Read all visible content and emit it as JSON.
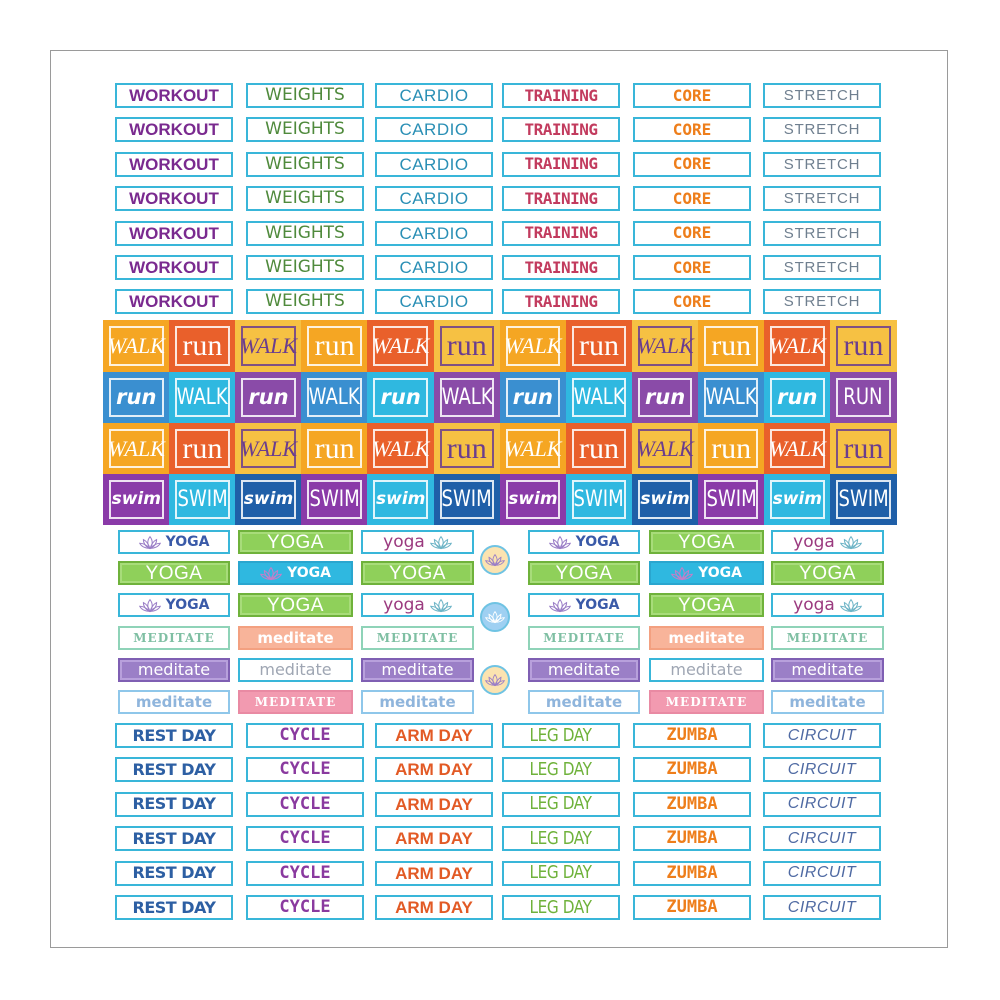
{
  "sticker_sheet": {
    "grid_top": {
      "columns": [
        {
          "text": "WORKOUT",
          "color": "#7a2a8f"
        },
        {
          "text": "WEIGHTS",
          "color": "#4f8a3c"
        },
        {
          "text": "CARDIO",
          "color": "#2a8fb5"
        },
        {
          "text": "TRAINING",
          "color": "#c23b5e"
        },
        {
          "text": "CORE",
          "color": "#ee7e1b"
        },
        {
          "text": "STRETCH",
          "color": "#6f7f8f"
        }
      ],
      "rows": 7
    },
    "tiles": {
      "rows": [
        [
          {
            "text": "WALK",
            "bg": "#f5a623",
            "fg": "#ffffff",
            "line": "#ffffff",
            "italic": true
          },
          {
            "text": "run",
            "bg": "#e9602b",
            "fg": "#ffffff",
            "line": "#ffffff",
            "italic": false
          },
          {
            "text": "WALK",
            "bg": "#f6c143",
            "fg": "#6a3d8f",
            "line": "#6a3d8f",
            "italic": true
          },
          {
            "text": "run",
            "bg": "#f5a623",
            "fg": "#ffffff",
            "line": "#ffffff",
            "italic": false
          },
          {
            "text": "WALK",
            "bg": "#e9602b",
            "fg": "#ffffff",
            "line": "#ffffff",
            "italic": true
          },
          {
            "text": "run",
            "bg": "#f6c143",
            "fg": "#6a3d8f",
            "line": "#6a3d8f",
            "italic": false
          },
          {
            "text": "WALK",
            "bg": "#f5a623",
            "fg": "#ffffff",
            "line": "#ffffff",
            "italic": true
          },
          {
            "text": "run",
            "bg": "#e9602b",
            "fg": "#ffffff",
            "line": "#ffffff",
            "italic": false
          },
          {
            "text": "WALK",
            "bg": "#f6c143",
            "fg": "#6a3d8f",
            "line": "#6a3d8f",
            "italic": true
          },
          {
            "text": "run",
            "bg": "#f5a623",
            "fg": "#ffffff",
            "line": "#ffffff",
            "italic": false
          },
          {
            "text": "WALK",
            "bg": "#e9602b",
            "fg": "#ffffff",
            "line": "#ffffff",
            "italic": true
          },
          {
            "text": "run",
            "bg": "#f6c143",
            "fg": "#6a3d8f",
            "line": "#6a3d8f",
            "italic": false
          }
        ],
        [
          {
            "text": "run",
            "bg": "#3a8fd0",
            "fg": "#ffffff",
            "line": "#ffffff",
            "italic": true
          },
          {
            "text": "WALK",
            "bg": "#2fb8e0",
            "fg": "#ffffff",
            "line": "#ffffff",
            "italic": false
          },
          {
            "text": "run",
            "bg": "#8a4ba8",
            "fg": "#ffffff",
            "line": "#ffffff",
            "italic": true
          },
          {
            "text": "WALK",
            "bg": "#3a8fd0",
            "fg": "#ffffff",
            "line": "#ffffff",
            "italic": false
          },
          {
            "text": "run",
            "bg": "#2fb8e0",
            "fg": "#ffffff",
            "line": "#ffffff",
            "italic": true
          },
          {
            "text": "WALK",
            "bg": "#8a4ba8",
            "fg": "#ffffff",
            "line": "#ffffff",
            "italic": false
          },
          {
            "text": "run",
            "bg": "#3a8fd0",
            "fg": "#ffffff",
            "line": "#ffffff",
            "italic": true
          },
          {
            "text": "WALK",
            "bg": "#2fb8e0",
            "fg": "#ffffff",
            "line": "#ffffff",
            "italic": false
          },
          {
            "text": "run",
            "bg": "#8a4ba8",
            "fg": "#ffffff",
            "line": "#ffffff",
            "italic": true
          },
          {
            "text": "WALK",
            "bg": "#3a8fd0",
            "fg": "#ffffff",
            "line": "#ffffff",
            "italic": false
          },
          {
            "text": "run",
            "bg": "#2fb8e0",
            "fg": "#ffffff",
            "line": "#ffffff",
            "italic": true
          },
          {
            "text": "RUN",
            "bg": "#8a4ba8",
            "fg": "#ffffff",
            "line": "#ffffff",
            "italic": false
          }
        ],
        [
          {
            "text": "WALK",
            "bg": "#f5a623",
            "fg": "#ffffff",
            "line": "#ffffff",
            "italic": true
          },
          {
            "text": "run",
            "bg": "#e9602b",
            "fg": "#ffffff",
            "line": "#ffffff",
            "italic": false
          },
          {
            "text": "WALK",
            "bg": "#f6c143",
            "fg": "#6a3d8f",
            "line": "#6a3d8f",
            "italic": true
          },
          {
            "text": "run",
            "bg": "#f5a623",
            "fg": "#ffffff",
            "line": "#ffffff",
            "italic": false
          },
          {
            "text": "WALK",
            "bg": "#e9602b",
            "fg": "#ffffff",
            "line": "#ffffff",
            "italic": true
          },
          {
            "text": "run",
            "bg": "#f6c143",
            "fg": "#6a3d8f",
            "line": "#6a3d8f",
            "italic": false
          },
          {
            "text": "WALK",
            "bg": "#f5a623",
            "fg": "#ffffff",
            "line": "#ffffff",
            "italic": true
          },
          {
            "text": "run",
            "bg": "#e9602b",
            "fg": "#ffffff",
            "line": "#ffffff",
            "italic": false
          },
          {
            "text": "WALK",
            "bg": "#f6c143",
            "fg": "#6a3d8f",
            "line": "#6a3d8f",
            "italic": true
          },
          {
            "text": "run",
            "bg": "#f5a623",
            "fg": "#ffffff",
            "line": "#ffffff",
            "italic": false
          },
          {
            "text": "WALK",
            "bg": "#e9602b",
            "fg": "#ffffff",
            "line": "#ffffff",
            "italic": true
          },
          {
            "text": "run",
            "bg": "#f6c143",
            "fg": "#6a3d8f",
            "line": "#6a3d8f",
            "italic": false
          }
        ],
        [
          {
            "text": "swim",
            "bg": "#8a3aa8",
            "fg": "#ffffff",
            "line": "#ffffff",
            "italic": true
          },
          {
            "text": "SWIM",
            "bg": "#2fb8e0",
            "fg": "#ffffff",
            "line": "#ffffff",
            "italic": false
          },
          {
            "text": "swim",
            "bg": "#1f5fa8",
            "fg": "#ffffff",
            "line": "#ffffff",
            "italic": true
          },
          {
            "text": "SWIM",
            "bg": "#8a3aa8",
            "fg": "#ffffff",
            "line": "#ffffff",
            "italic": false
          },
          {
            "text": "swim",
            "bg": "#2fb8e0",
            "fg": "#ffffff",
            "line": "#ffffff",
            "italic": true
          },
          {
            "text": "SWIM",
            "bg": "#1f5fa8",
            "fg": "#ffffff",
            "line": "#ffffff",
            "italic": false
          },
          {
            "text": "swim",
            "bg": "#8a3aa8",
            "fg": "#ffffff",
            "line": "#ffffff",
            "italic": true
          },
          {
            "text": "SWIM",
            "bg": "#2fb8e0",
            "fg": "#ffffff",
            "line": "#ffffff",
            "italic": false
          },
          {
            "text": "swim",
            "bg": "#1f5fa8",
            "fg": "#ffffff",
            "line": "#ffffff",
            "italic": true
          },
          {
            "text": "SWIM",
            "bg": "#8a3aa8",
            "fg": "#ffffff",
            "line": "#ffffff",
            "italic": false
          },
          {
            "text": "swim",
            "bg": "#2fb8e0",
            "fg": "#ffffff",
            "line": "#ffffff",
            "italic": true
          },
          {
            "text": "SWIM",
            "bg": "#1f5fa8",
            "fg": "#ffffff",
            "line": "#ffffff",
            "italic": false
          }
        ]
      ]
    },
    "yoga": {
      "rows": [
        [
          {
            "text": "YOGA",
            "style": "white",
            "lotus": true,
            "fg": "#3a5aa8"
          },
          {
            "text": "YOGA",
            "style": "green",
            "lotus": false,
            "fg": "#ffffff"
          },
          {
            "text": "yoga",
            "style": "white-lower",
            "lotus": true,
            "fg": "#9b3a7f"
          },
          {
            "text": "YOGA",
            "style": "white",
            "lotus": true,
            "fg": "#3a5aa8"
          },
          {
            "text": "YOGA",
            "style": "green",
            "lotus": false,
            "fg": "#ffffff"
          },
          {
            "text": "yoga",
            "style": "white-lower",
            "lotus": true,
            "fg": "#9b3a7f"
          }
        ],
        [
          {
            "text": "YOGA",
            "style": "green",
            "lotus": false,
            "fg": "#ffffff"
          },
          {
            "text": "YOGA",
            "style": "teal",
            "lotus": true,
            "fg": "#ffffff"
          },
          {
            "text": "YOGA",
            "style": "green",
            "lotus": false,
            "fg": "#ffffff"
          },
          {
            "text": "YOGA",
            "style": "green",
            "lotus": false,
            "fg": "#ffffff"
          },
          {
            "text": "YOGA",
            "style": "teal",
            "lotus": true,
            "fg": "#ffffff"
          },
          {
            "text": "YOGA",
            "style": "green",
            "lotus": false,
            "fg": "#ffffff"
          }
        ],
        [
          {
            "text": "YOGA",
            "style": "white",
            "lotus": true,
            "fg": "#3a5aa8"
          },
          {
            "text": "YOGA",
            "style": "green",
            "lotus": false,
            "fg": "#ffffff"
          },
          {
            "text": "yoga",
            "style": "white-lower",
            "lotus": true,
            "fg": "#9b3a7f"
          },
          {
            "text": "YOGA",
            "style": "white",
            "lotus": true,
            "fg": "#3a5aa8"
          },
          {
            "text": "YOGA",
            "style": "green",
            "lotus": false,
            "fg": "#ffffff"
          },
          {
            "text": "yoga",
            "style": "white-lower",
            "lotus": true,
            "fg": "#9b3a7f"
          }
        ]
      ]
    },
    "meditate": {
      "rows": [
        [
          {
            "text": "MEDITATE",
            "style": "mint"
          },
          {
            "text": "meditate",
            "style": "peach"
          },
          {
            "text": "MEDITATE",
            "style": "mint"
          },
          {
            "text": "MEDITATE",
            "style": "mint"
          },
          {
            "text": "meditate",
            "style": "peach"
          },
          {
            "text": "MEDITATE",
            "style": "mint"
          }
        ],
        [
          {
            "text": "meditate",
            "style": "lavender"
          },
          {
            "text": "meditate",
            "style": "outline"
          },
          {
            "text": "meditate",
            "style": "lavender"
          },
          {
            "text": "meditate",
            "style": "lavender"
          },
          {
            "text": "meditate",
            "style": "outline"
          },
          {
            "text": "meditate",
            "style": "lavender"
          }
        ],
        [
          {
            "text": "meditate",
            "style": "sky"
          },
          {
            "text": "MEDITATE",
            "style": "pink"
          },
          {
            "text": "meditate",
            "style": "sky"
          },
          {
            "text": "meditate",
            "style": "sky"
          },
          {
            "text": "MEDITATE",
            "style": "pink"
          },
          {
            "text": "meditate",
            "style": "sky"
          }
        ]
      ]
    },
    "circles": [
      {
        "bg": "#fbe3b0",
        "ring": "#6fc3e3"
      },
      {
        "bg": "#9fd0f2",
        "ring": "#6fc3e3"
      },
      {
        "bg": "#fbe3b0",
        "ring": "#6fc3e3"
      }
    ],
    "grid_bottom": {
      "columns": [
        {
          "text": "REST DAY",
          "color": "#2d5fa3"
        },
        {
          "text": "CYCLE",
          "color": "#8a3a9f"
        },
        {
          "text": "ARM DAY",
          "color": "#e25a25"
        },
        {
          "text": "LEG DAY",
          "color": "#6fb23b"
        },
        {
          "text": "ZUMBA",
          "color": "#ee7e1b"
        },
        {
          "text": "CIRCUIT",
          "color": "#4f6aa3"
        }
      ],
      "rows": 6
    }
  }
}
